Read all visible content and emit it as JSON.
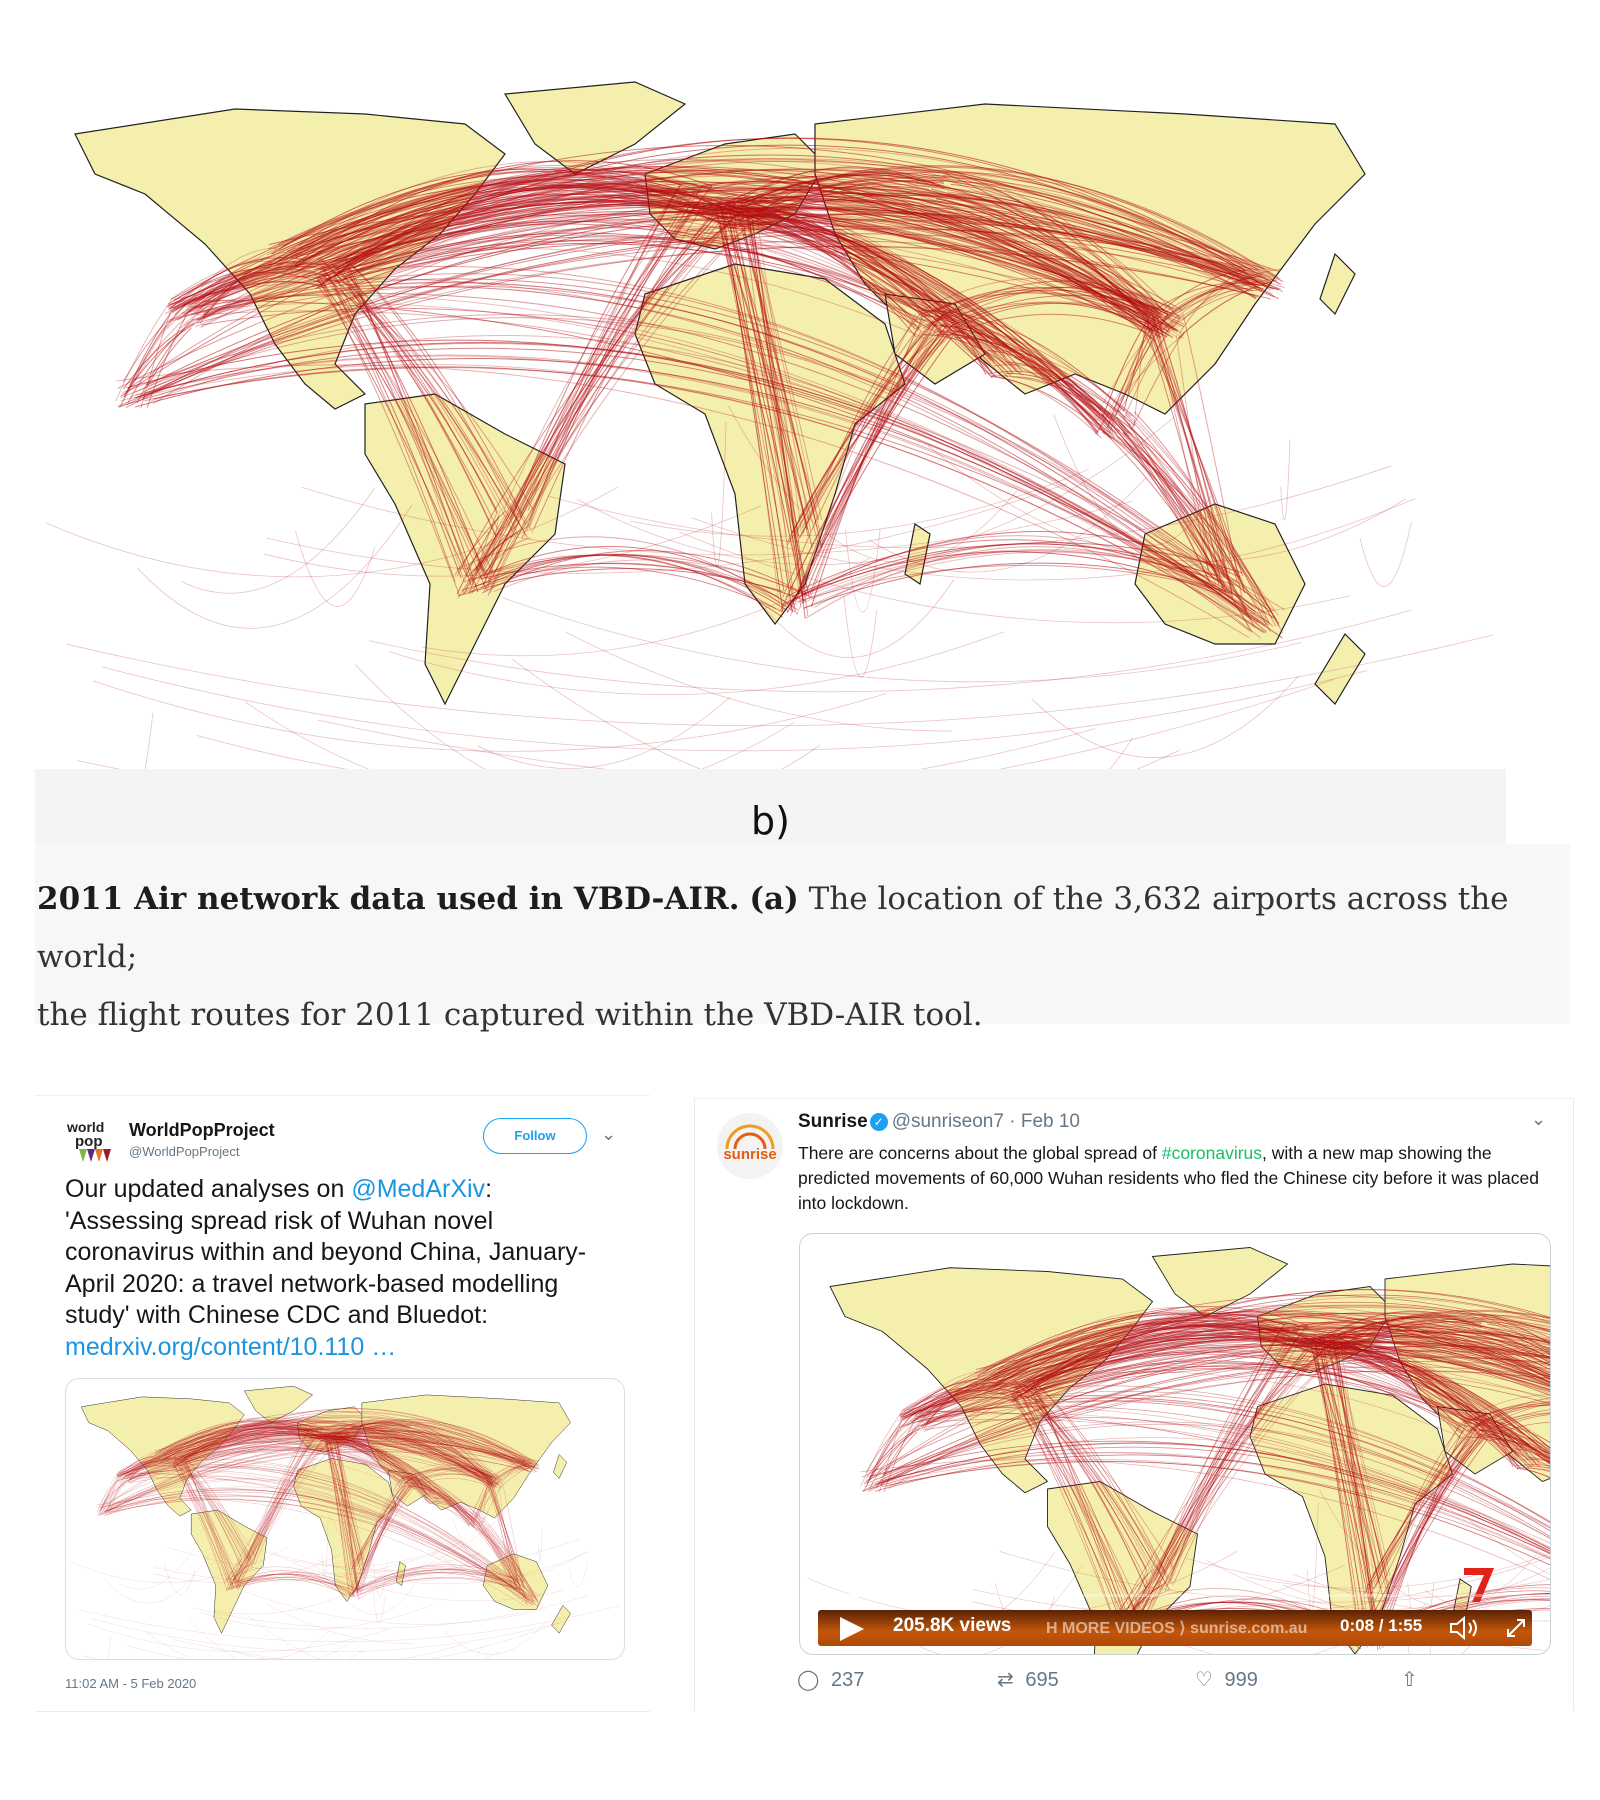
{
  "figure": {
    "panel_label": "b)",
    "caption": {
      "bold": "2011 Air network data used in VBD-AIR.",
      "part_a_label": "(a)",
      "text": " The location of the 3,632 airports across the world;",
      "line2": "the flight routes for 2011 captured within the VBD-AIR tool."
    }
  },
  "tweet_left": {
    "avatar_text": "world pop",
    "display_name": "WorldPopProject",
    "handle": "@WorldPopProject",
    "follow_label": "Follow",
    "text_before_mention": "Our updated analyses on ",
    "mention": "@MedArXiv",
    "text_after_mention": ": 'Assessing spread risk of Wuhan novel coronavirus within and beyond China, January-April 2020: a travel network-based modelling study' with Chinese CDC and Bluedot: ",
    "link": "medrxiv.org/content/10.110 …",
    "timestamp": "11:02 AM - 5 Feb 2020"
  },
  "tweet_right": {
    "avatar_text": "sunrise",
    "display_name": "Sunrise",
    "handle": "@sunriseon7",
    "date": "Feb 10",
    "text_before_hashtag": "There are concerns about the global spread of ",
    "hashtag": "#coronavirus",
    "text_after_hashtag": ", with a new map showing the predicted movements of 60,000 Wuhan residents who fled the Chinese city before it was placed into lockdown.",
    "video": {
      "views": "205.8K views",
      "ticker": "H MORE VIDEOS ⟩ sunrise.com.au",
      "time": "0:08 / 1:55",
      "progress": 0.07
    },
    "replies": "237",
    "retweets": "695",
    "likes": "999"
  },
  "colors": {
    "route": "#b30d12",
    "land": "#f5efae",
    "twitter_blue": "#1da1f2",
    "hashtag_green": "#17bf63"
  }
}
